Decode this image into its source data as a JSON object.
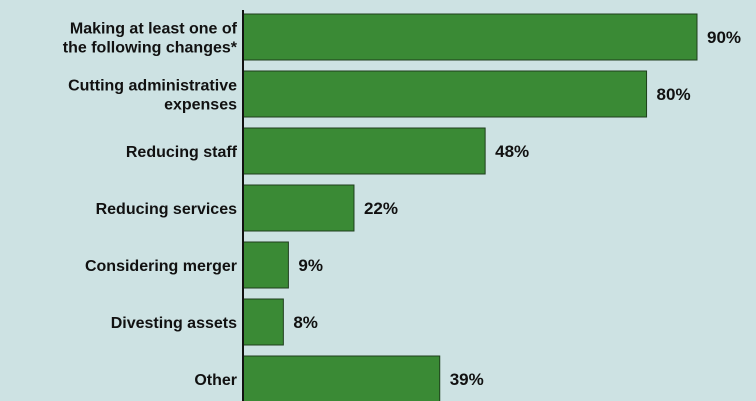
{
  "chart_data": {
    "type": "bar",
    "orientation": "horizontal",
    "categories": [
      "Making at least one of the following changes*",
      "Cutting administrative expenses",
      "Reducing staff",
      "Reducing services",
      "Considering merger",
      "Divesting assets",
      "Other"
    ],
    "category_lines": [
      [
        "Making at least one of",
        "the following changes*"
      ],
      [
        "Cutting administrative",
        "expenses"
      ],
      [
        "Reducing staff"
      ],
      [
        "Reducing services"
      ],
      [
        "Considering merger"
      ],
      [
        "Divesting assets"
      ],
      [
        "Other"
      ]
    ],
    "values": [
      90,
      80,
      48,
      22,
      9,
      8,
      39
    ],
    "value_labels": [
      "90%",
      "80%",
      "48%",
      "22%",
      "9%",
      "8%",
      "39%"
    ],
    "xlim": [
      0,
      100
    ],
    "grid": false,
    "colors": {
      "bar": "#3a8a35",
      "bar_stroke": "#1e3f1c",
      "axis": "#111111",
      "background": "#cde2e3"
    }
  }
}
